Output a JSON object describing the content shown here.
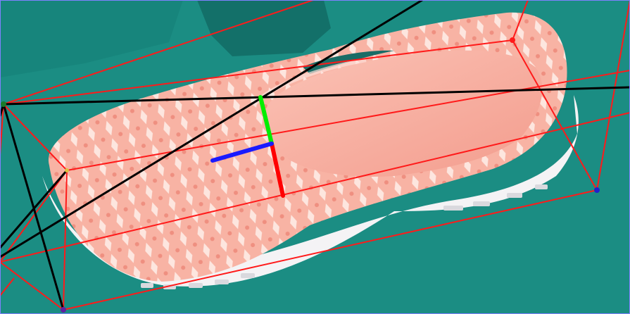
{
  "image": {
    "subject": "shoe-pose-annotation",
    "colors": {
      "background": "#1b8d83",
      "background_dark": "#137069",
      "shoe_body": "#f6a99a",
      "shoe_light": "#fde0d8",
      "sole": "#f4f3f5",
      "bbox_edge": "#ff1a1a",
      "projection_line": "#000000",
      "axis_x": "#ff0000",
      "axis_y": "#00ee00",
      "axis_z": "#1a1aff",
      "frame_border": "#8080ff"
    }
  }
}
